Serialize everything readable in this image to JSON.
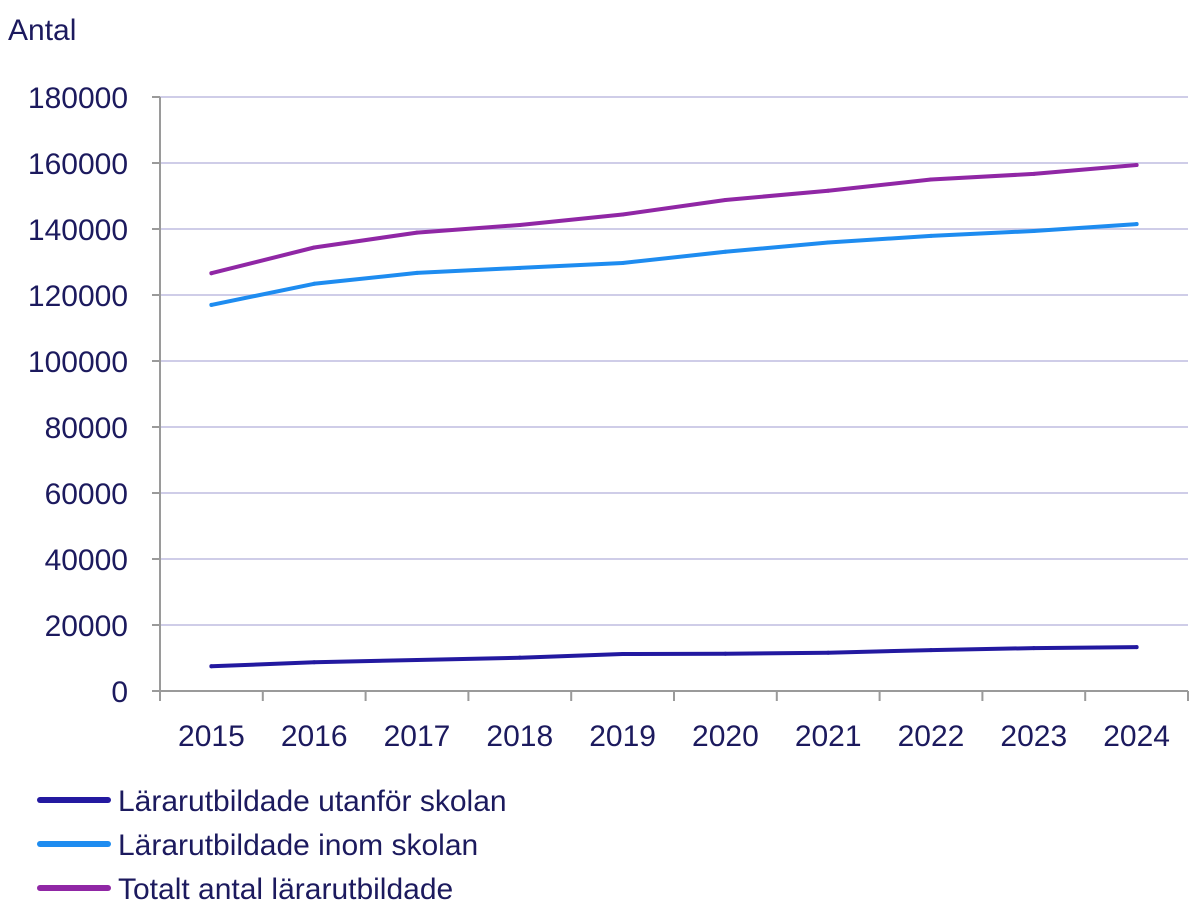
{
  "chart_data": {
    "type": "line",
    "ylabel": "Antal",
    "ylim": [
      0,
      180000
    ],
    "yticks": [
      "0",
      "20000",
      "40000",
      "60000",
      "80000",
      "100000",
      "120000",
      "140000",
      "160000",
      "180000"
    ],
    "categories": [
      "2015",
      "2016",
      "2017",
      "2018",
      "2019",
      "2020",
      "2021",
      "2022",
      "2023",
      "2024"
    ],
    "grid": true,
    "legend_position": "bottom",
    "series": [
      {
        "name": "Lärarutbildade utanför skolan",
        "color": "#2319a0",
        "values": [
          7500,
          8700,
          9400,
          10100,
          11200,
          11300,
          11600,
          12400,
          13000,
          13300
        ]
      },
      {
        "name": "Lärarutbildade inom skolan",
        "color": "#1e8cf0",
        "values": [
          117000,
          123400,
          126700,
          128200,
          129700,
          133100,
          135900,
          137900,
          139400,
          141500
        ]
      },
      {
        "name": "Totalt antal lärarutbildade",
        "color": "#9027a5",
        "values": [
          126600,
          134400,
          138900,
          141200,
          144400,
          148800,
          151600,
          155000,
          156700,
          159400
        ]
      }
    ]
  }
}
